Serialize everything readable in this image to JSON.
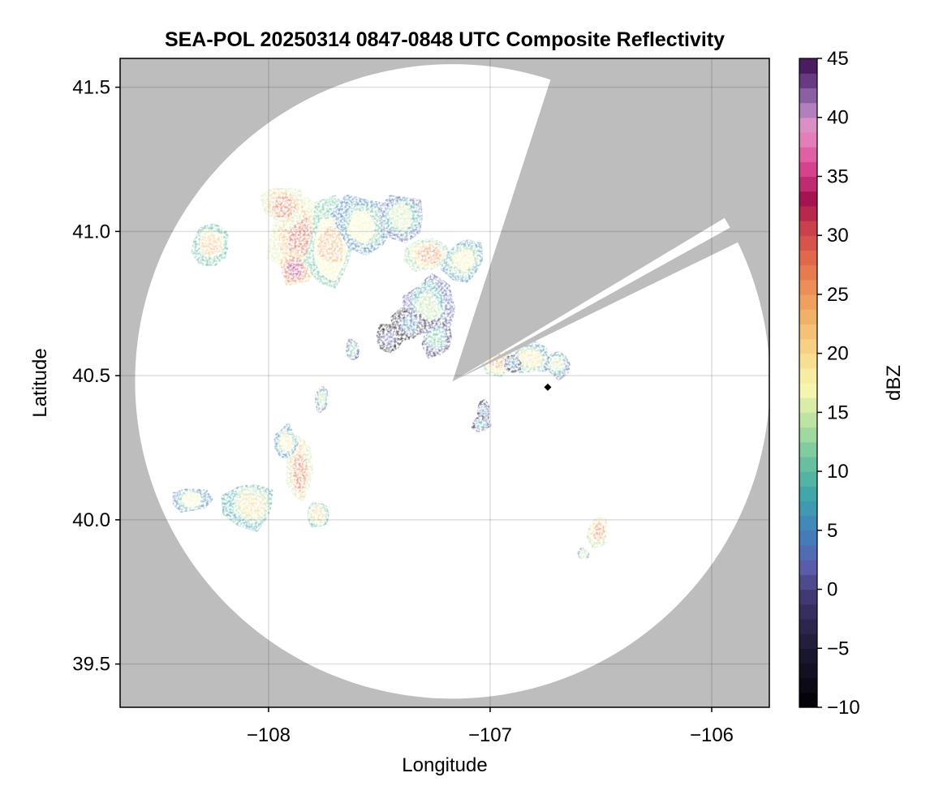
{
  "chart_data": {
    "type": "heatmap",
    "title": "SEA-POL 20250314 0847-0848 UTC Composite Reflectivity",
    "xlabel": "Longitude",
    "ylabel": "Latitude",
    "xlim": [
      -108.67,
      -105.74
    ],
    "ylim": [
      39.35,
      41.6
    ],
    "x_ticks": [
      -108,
      -107,
      -106
    ],
    "x_tick_labels": [
      "−108",
      "−107",
      "−106"
    ],
    "y_ticks": [
      39.5,
      40.0,
      40.5,
      41.0,
      41.5
    ],
    "y_tick_labels": [
      "39.5",
      "40.0",
      "40.5",
      "41.0",
      "41.5"
    ],
    "grid": true,
    "background_color": "#bdbdbd",
    "coverage_color": "#ffffff",
    "radar_site": {
      "lon": -107.17,
      "lat": 40.48
    },
    "coverage_radius_deg_lat": 1.1,
    "blocked_sectors_deg_from_north": [
      [
        18,
        59
      ],
      [
        61,
        64
      ]
    ],
    "marker": {
      "lon": -106.74,
      "lat": 40.46,
      "shape": "diamond",
      "color": "#000000"
    },
    "colorbar": {
      "label": "dBZ",
      "min": -10,
      "max": 45,
      "ticks": [
        -10,
        -5,
        0,
        5,
        10,
        15,
        20,
        25,
        30,
        35,
        40,
        45
      ],
      "tick_labels": [
        "−10",
        "−5",
        "0",
        "5",
        "10",
        "15",
        "20",
        "25",
        "30",
        "35",
        "40",
        "45"
      ],
      "colormap": "spectral-magma",
      "stops": [
        {
          "v": -10,
          "c": "#000004"
        },
        {
          "v": -5,
          "c": "#1d1a33"
        },
        {
          "v": -1,
          "c": "#3d336b"
        },
        {
          "v": 2,
          "c": "#5a5fac"
        },
        {
          "v": 5,
          "c": "#3f82bc"
        },
        {
          "v": 8,
          "c": "#3fa6aa"
        },
        {
          "v": 11,
          "c": "#6cc49d"
        },
        {
          "v": 14,
          "c": "#b5e1a0"
        },
        {
          "v": 17,
          "c": "#f7f7b0"
        },
        {
          "v": 20,
          "c": "#f7d98a"
        },
        {
          "v": 24,
          "c": "#f1a660"
        },
        {
          "v": 28,
          "c": "#e26a4a"
        },
        {
          "v": 31,
          "c": "#c73a4b"
        },
        {
          "v": 33,
          "c": "#a5114d"
        },
        {
          "v": 36,
          "c": "#dc4a96"
        },
        {
          "v": 39,
          "c": "#e794c6"
        },
        {
          "v": 41,
          "c": "#a57ab9"
        },
        {
          "v": 43,
          "c": "#6a3d86"
        },
        {
          "v": 45,
          "c": "#3b0f4f"
        }
      ]
    },
    "echo_cells": [
      {
        "lon": -107.85,
        "lat": 40.97,
        "rx": 0.14,
        "ry": 0.15,
        "dbz": 28
      },
      {
        "lon": -107.93,
        "lat": 41.09,
        "rx": 0.09,
        "ry": 0.07,
        "dbz": 27
      },
      {
        "lon": -107.88,
        "lat": 40.87,
        "rx": 0.06,
        "ry": 0.05,
        "dbz": 34
      },
      {
        "lon": -107.72,
        "lat": 40.95,
        "rx": 0.1,
        "ry": 0.14,
        "dbz": 23
      },
      {
        "lon": -107.58,
        "lat": 41.02,
        "rx": 0.12,
        "ry": 0.1,
        "dbz": 17
      },
      {
        "lon": -107.4,
        "lat": 41.05,
        "rx": 0.1,
        "ry": 0.08,
        "dbz": 15
      },
      {
        "lon": -107.28,
        "lat": 40.92,
        "rx": 0.1,
        "ry": 0.05,
        "dbz": 25
      },
      {
        "lon": -107.12,
        "lat": 40.9,
        "rx": 0.08,
        "ry": 0.07,
        "dbz": 18
      },
      {
        "lon": -107.28,
        "lat": 40.73,
        "rx": 0.1,
        "ry": 0.11,
        "dbz": 14
      },
      {
        "lon": -107.36,
        "lat": 40.68,
        "rx": 0.07,
        "ry": 0.05,
        "dbz": 5
      },
      {
        "lon": -107.24,
        "lat": 40.63,
        "rx": 0.06,
        "ry": 0.06,
        "dbz": 11
      },
      {
        "lon": -107.46,
        "lat": 40.63,
        "rx": 0.05,
        "ry": 0.04,
        "dbz": 2
      },
      {
        "lon": -107.62,
        "lat": 40.59,
        "rx": 0.02,
        "ry": 0.03,
        "dbz": 12
      },
      {
        "lon": -108.26,
        "lat": 40.95,
        "rx": 0.08,
        "ry": 0.06,
        "dbz": 22
      },
      {
        "lon": -106.97,
        "lat": 40.55,
        "rx": 0.08,
        "ry": 0.04,
        "dbz": 24
      },
      {
        "lon": -106.82,
        "lat": 40.56,
        "rx": 0.09,
        "ry": 0.05,
        "dbz": 19
      },
      {
        "lon": -106.7,
        "lat": 40.54,
        "rx": 0.05,
        "ry": 0.04,
        "dbz": 15
      },
      {
        "lon": -106.9,
        "lat": 40.54,
        "rx": 0.03,
        "ry": 0.02,
        "dbz": 6
      },
      {
        "lon": -107.03,
        "lat": 40.38,
        "rx": 0.02,
        "ry": 0.03,
        "dbz": 5
      },
      {
        "lon": -107.04,
        "lat": 40.33,
        "rx": 0.03,
        "ry": 0.02,
        "dbz": 8
      },
      {
        "lon": -107.86,
        "lat": 40.17,
        "rx": 0.05,
        "ry": 0.12,
        "dbz": 27
      },
      {
        "lon": -107.92,
        "lat": 40.27,
        "rx": 0.04,
        "ry": 0.05,
        "dbz": 18
      },
      {
        "lon": -108.08,
        "lat": 40.05,
        "rx": 0.11,
        "ry": 0.07,
        "dbz": 20
      },
      {
        "lon": -107.78,
        "lat": 40.02,
        "rx": 0.04,
        "ry": 0.04,
        "dbz": 21
      },
      {
        "lon": -108.35,
        "lat": 40.07,
        "rx": 0.08,
        "ry": 0.04,
        "dbz": 17
      },
      {
        "lon": -106.51,
        "lat": 39.96,
        "rx": 0.04,
        "ry": 0.05,
        "dbz": 26
      },
      {
        "lon": -107.76,
        "lat": 40.42,
        "rx": 0.02,
        "ry": 0.04,
        "dbz": 14
      },
      {
        "lon": -106.58,
        "lat": 39.88,
        "rx": 0.015,
        "ry": 0.015,
        "dbz": 15
      }
    ]
  }
}
